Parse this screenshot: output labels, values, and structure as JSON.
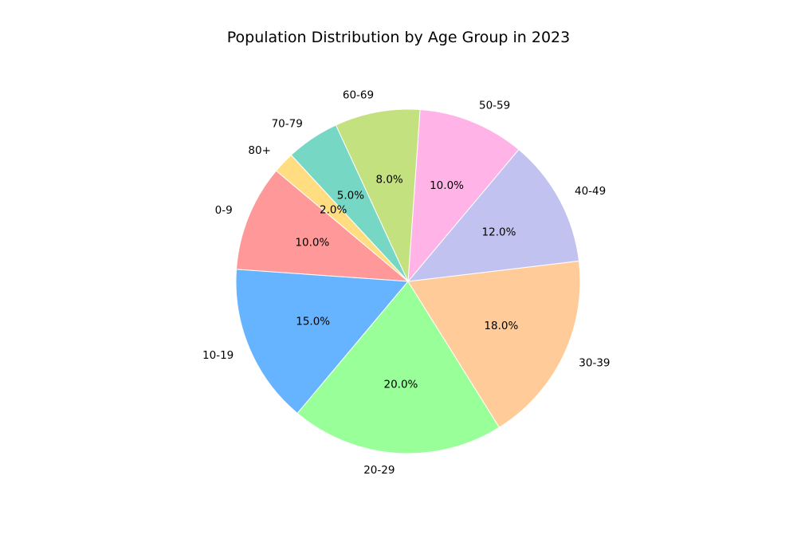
{
  "chart_data": {
    "type": "pie",
    "title": "Population Distribution by Age Group in 2023",
    "categories": [
      "0-9",
      "10-19",
      "20-29",
      "30-39",
      "40-49",
      "50-59",
      "60-69",
      "70-79",
      "80+"
    ],
    "values": [
      10,
      15,
      20,
      18,
      12,
      10,
      8,
      5,
      2
    ],
    "percent_labels": [
      "10.0%",
      "15.0%",
      "20.0%",
      "18.0%",
      "12.0%",
      "10.0%",
      "8.0%",
      "5.0%",
      "2.0%"
    ],
    "colors": [
      "#ff9999",
      "#66b3ff",
      "#99ff99",
      "#ffcc99",
      "#c2c2f0",
      "#ffb3e6",
      "#c4e17f",
      "#76d7c4",
      "#ffdd80"
    ],
    "start_angle_deg": 140,
    "direction": "counterclockwise"
  }
}
